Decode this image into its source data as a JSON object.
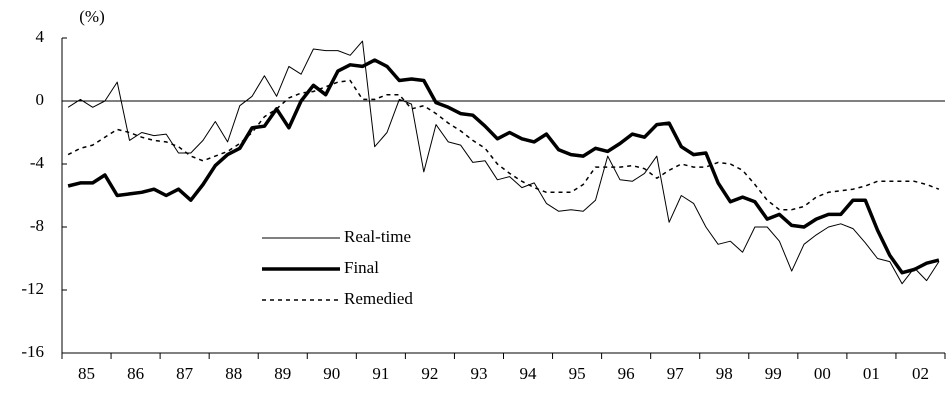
{
  "chart_data": {
    "type": "line",
    "unit_label": "(%)",
    "categories": [
      null,
      "85",
      null,
      null,
      null,
      "86",
      null,
      null,
      null,
      "87",
      null,
      null,
      null,
      "88",
      null,
      null,
      null,
      "89",
      null,
      null,
      null,
      "90",
      null,
      null,
      null,
      "91",
      null,
      null,
      null,
      "92",
      null,
      null,
      null,
      "93",
      null,
      null,
      null,
      "94",
      null,
      null,
      null,
      "95",
      null,
      null,
      null,
      "96",
      null,
      null,
      null,
      "97",
      null,
      null,
      null,
      "98",
      null,
      null,
      null,
      "99",
      null,
      null,
      null,
      "00",
      null,
      null,
      null,
      "01",
      null,
      null,
      null,
      "02",
      null,
      null
    ],
    "series": [
      {
        "name": "Real-time",
        "color": "#000000",
        "width": 1,
        "dash": false,
        "values": [
          -0.4,
          0.1,
          -0.4,
          0.0,
          1.2,
          -2.5,
          -2.0,
          -2.2,
          -2.1,
          -3.3,
          -3.3,
          -2.5,
          -1.3,
          -2.6,
          -0.3,
          0.3,
          1.6,
          0.3,
          2.2,
          1.7,
          3.3,
          3.2,
          3.2,
          2.9,
          3.8,
          -2.9,
          -2.0,
          0.1,
          -0.2,
          -4.5,
          -1.5,
          -2.6,
          -2.8,
          -3.9,
          -3.8,
          -5.0,
          -4.8,
          -5.5,
          -5.2,
          -6.5,
          -7.0,
          -6.9,
          -7.0,
          -6.3,
          -3.5,
          -5.0,
          -5.1,
          -4.6,
          -3.5,
          -7.7,
          -6.0,
          -6.5,
          -8.0,
          -9.1,
          -8.9,
          -9.6,
          -8.0,
          -8.0,
          -8.9,
          -10.8,
          -9.1,
          -8.5,
          -8.0,
          -7.8,
          -8.1,
          -9.0,
          -10.0,
          -10.2,
          -11.6,
          -10.6,
          -11.4,
          -10.2
        ]
      },
      {
        "name": "Final",
        "color": "#000000",
        "width": 3.5,
        "dash": false,
        "values": [
          -5.4,
          -5.2,
          -5.2,
          -4.7,
          -6.0,
          -5.9,
          -5.8,
          -5.6,
          -6.0,
          -5.6,
          -6.3,
          -5.3,
          -4.1,
          -3.4,
          -3.0,
          -1.7,
          -1.6,
          -0.5,
          -1.7,
          0.0,
          1.0,
          0.4,
          1.9,
          2.3,
          2.2,
          2.6,
          2.2,
          1.3,
          1.4,
          1.3,
          -0.1,
          -0.4,
          -0.8,
          -0.9,
          -1.6,
          -2.4,
          -2.0,
          -2.4,
          -2.6,
          -2.1,
          -3.1,
          -3.4,
          -3.5,
          -3.0,
          -3.2,
          -2.7,
          -2.1,
          -2.3,
          -1.5,
          -1.4,
          -2.9,
          -3.4,
          -3.3,
          -5.2,
          -6.4,
          -6.1,
          -6.4,
          -7.5,
          -7.2,
          -7.9,
          -8.0,
          -7.5,
          -7.2,
          -7.2,
          -6.3,
          -6.3,
          -8.2,
          -9.8,
          -10.9,
          -10.7,
          -10.3,
          -10.1
        ]
      },
      {
        "name": "Remedied",
        "color": "#000000",
        "width": 1.5,
        "dash": true,
        "values": [
          -3.4,
          -3.0,
          -2.8,
          -2.3,
          -1.8,
          -2.0,
          -2.3,
          -2.5,
          -2.6,
          -2.9,
          -3.5,
          -3.8,
          -3.5,
          -3.2,
          -2.7,
          -2.0,
          -1.0,
          -0.5,
          0.2,
          0.5,
          0.6,
          0.9,
          1.2,
          1.3,
          0.1,
          0.1,
          0.4,
          0.4,
          -0.5,
          -0.3,
          -0.8,
          -1.4,
          -1.9,
          -2.5,
          -3.0,
          -4.0,
          -4.6,
          -5.1,
          -5.5,
          -5.8,
          -5.8,
          -5.8,
          -5.3,
          -4.2,
          -4.2,
          -4.2,
          -4.1,
          -4.3,
          -4.9,
          -4.4,
          -4.0,
          -4.2,
          -4.2,
          -3.9,
          -4.0,
          -4.4,
          -5.3,
          -6.3,
          -6.9,
          -6.9,
          -6.7,
          -6.1,
          -5.8,
          -5.7,
          -5.6,
          -5.4,
          -5.1,
          -5.1,
          -5.1,
          -5.1,
          -5.3,
          -5.6
        ]
      }
    ],
    "ylim": [
      -16,
      4
    ],
    "yticks": [
      -16,
      -12,
      -8,
      -4,
      0,
      4
    ]
  }
}
